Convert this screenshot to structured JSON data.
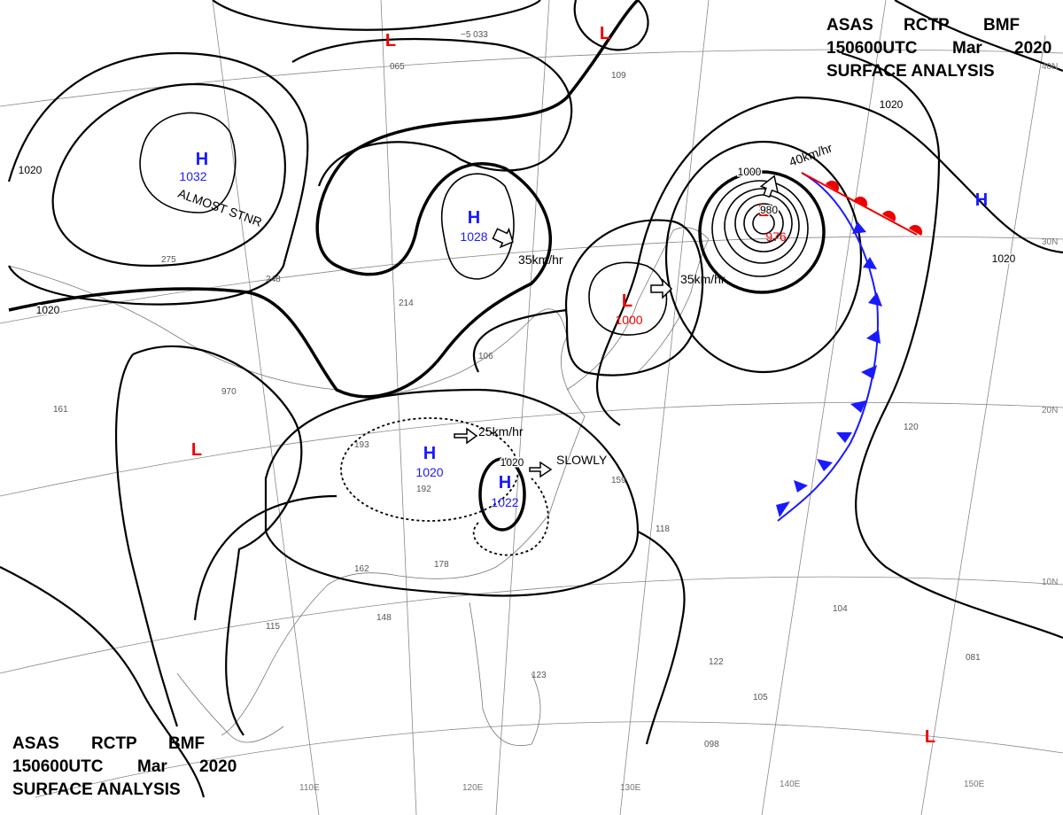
{
  "header": {
    "agency": "ASAS",
    "station": "RCTP",
    "office": "BMF",
    "time": "150600UTC",
    "month": "Mar",
    "year": "2020",
    "title": "SURFACE ANALYSIS"
  },
  "systems": [
    {
      "symbol": "L"
    },
    {
      "symbol": "L"
    },
    {
      "symbol": "H",
      "value": 1032,
      "note": "ALMOST STNR"
    },
    {
      "symbol": "H",
      "value": 1028
    },
    {
      "symbol": "L",
      "value": 1000
    },
    {
      "symbol": "L",
      "value": 976
    },
    {
      "symbol": "H"
    },
    {
      "symbol": "H",
      "value": 1020
    },
    {
      "symbol": "H",
      "value": 1022
    },
    {
      "symbol": "L"
    },
    {
      "symbol": "L"
    }
  ],
  "isobar_labels": [
    1020,
    1020,
    1020,
    1020,
    1000,
    980,
    1020
  ],
  "motions": [
    "40km/hr",
    "35km/hr",
    "35km/hr",
    "25km/hr",
    "SLOWLY"
  ],
  "latitudes": [
    "40N",
    "30N",
    "20N",
    "10N"
  ],
  "longitudes": [
    "110E",
    "120E",
    "130E",
    "140E",
    "150E"
  ]
}
